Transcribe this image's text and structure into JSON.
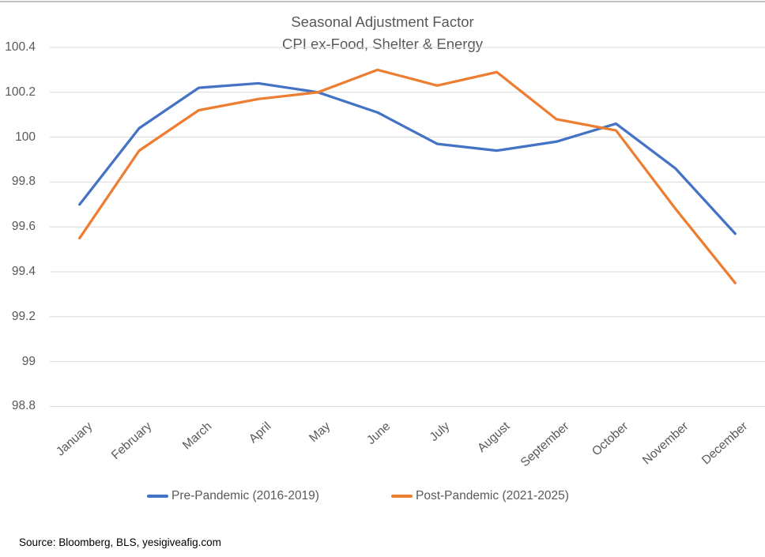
{
  "chart_data": {
    "type": "line",
    "title": "Seasonal Adjustment Factor",
    "subtitle": "CPI ex-Food, Shelter & Energy",
    "categories": [
      "January",
      "February",
      "March",
      "April",
      "May",
      "June",
      "July",
      "August",
      "September",
      "October",
      "November",
      "December"
    ],
    "series": [
      {
        "name": "Pre-Pandemic (2016-2019)",
        "color": "#4472C4",
        "values": [
          99.7,
          100.04,
          100.22,
          100.24,
          100.2,
          100.11,
          99.97,
          99.94,
          99.98,
          100.06,
          99.86,
          99.57
        ]
      },
      {
        "name": "Post-Pandemic (2021-2025)",
        "color": "#ED7D31",
        "values": [
          99.55,
          99.94,
          100.12,
          100.17,
          100.2,
          100.3,
          100.23,
          100.29,
          100.08,
          100.03,
          99.68,
          99.35
        ]
      }
    ],
    "yticks": [
      100.4,
      100.2,
      100,
      99.8,
      99.6,
      99.4,
      99.2,
      99,
      98.8
    ],
    "ylim": [
      98.8,
      100.4
    ],
    "grid": true,
    "gridline_color": "#D9D9D9",
    "legend_position": "bottom",
    "xlabel": "",
    "ylabel": ""
  },
  "source_note": "Source: Bloomberg, BLS, yesigiveafig.com"
}
